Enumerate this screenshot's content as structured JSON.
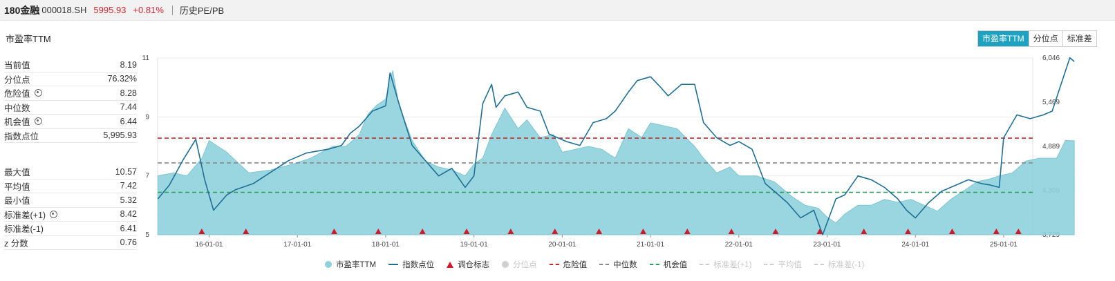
{
  "header": {
    "name": "180金融",
    "code": "000018.SH",
    "price": "5995.93",
    "change": "+0.81%",
    "history_link": "历史PE/PB"
  },
  "metric_title": "市盈率TTM",
  "toggles": [
    {
      "label": "市盈率TTM",
      "active": true
    },
    {
      "label": "分位点",
      "active": false
    },
    {
      "label": "标准差",
      "active": false
    }
  ],
  "stats_top": [
    {
      "label": "当前值",
      "value": "8.19",
      "gear": false
    },
    {
      "label": "分位点",
      "value": "76.32%",
      "gear": false
    },
    {
      "label": "危险值",
      "value": "8.28",
      "gear": true
    },
    {
      "label": "中位数",
      "value": "7.44",
      "gear": false
    },
    {
      "label": "机会值",
      "value": "6.44",
      "gear": true
    },
    {
      "label": "指数点位",
      "value": "5,995.93",
      "gear": false
    }
  ],
  "stats_bottom": [
    {
      "label": "最大值",
      "value": "10.57",
      "gear": false
    },
    {
      "label": "平均值",
      "value": "7.42",
      "gear": false
    },
    {
      "label": "最小值",
      "value": "5.32",
      "gear": false
    },
    {
      "label": "标准差(+1)",
      "value": "8.42",
      "gear": true
    },
    {
      "label": "标准差(-1)",
      "value": "6.41",
      "gear": false
    },
    {
      "label": "z 分数",
      "value": "0.76",
      "gear": false
    }
  ],
  "legend": [
    {
      "label": "市盈率TTM",
      "kind": "circle",
      "color": "#8fd2dc",
      "enabled": true
    },
    {
      "label": "指数点位",
      "kind": "line",
      "color": "#1e6f96",
      "enabled": true
    },
    {
      "label": "调仓标志",
      "kind": "triangle",
      "color": "#d0192a",
      "enabled": true
    },
    {
      "label": "分位点",
      "kind": "circle",
      "color": "#d0d0d0",
      "enabled": false
    },
    {
      "label": "危险值",
      "kind": "dash",
      "color": "#c62828",
      "enabled": true
    },
    {
      "label": "中位数",
      "kind": "dash",
      "color": "#888888",
      "enabled": true
    },
    {
      "label": "机会值",
      "kind": "dash",
      "color": "#2e9e5b",
      "enabled": true
    },
    {
      "label": "标准差(+1)",
      "kind": "dash",
      "color": "#cccccc",
      "enabled": false
    },
    {
      "label": "平均值",
      "kind": "dash",
      "color": "#cccccc",
      "enabled": false
    },
    {
      "label": "标准差(-1)",
      "kind": "dash",
      "color": "#cccccc",
      "enabled": false
    }
  ],
  "chart_data": {
    "type": "area",
    "x_range": [
      "2015-06-01",
      "2025-04-30"
    ],
    "x_ticks": [
      "16-01-01",
      "17-01-01",
      "18-01-01",
      "19-01-01",
      "20-01-01",
      "21-01-01",
      "22-01-01",
      "23-01-01",
      "24-01-01",
      "25-01-01"
    ],
    "y_left": {
      "min": 5,
      "max": 11,
      "ticks": [
        5,
        7,
        9,
        11
      ]
    },
    "y_right": {
      "min": 3729,
      "max": 6046,
      "ticks": [
        "3,729",
        "4,309",
        "4,889",
        "5,469",
        "6,046"
      ]
    },
    "reference_lines": [
      {
        "name": "危险值",
        "value": 8.28,
        "color": "#c62828"
      },
      {
        "name": "中位数",
        "value": 7.44,
        "color": "#888888"
      },
      {
        "name": "机会值",
        "value": 6.44,
        "color": "#2e9e5b"
      }
    ],
    "series": [
      {
        "name": "市盈率TTM",
        "axis": "left",
        "color": "#8fd2dc",
        "x": [
          2015.42,
          2015.6,
          2015.75,
          2015.92,
          2016.0,
          2016.2,
          2016.45,
          2016.7,
          2016.95,
          2017.15,
          2017.4,
          2017.55,
          2017.7,
          2017.8,
          2017.9,
          2018.0,
          2018.08,
          2018.15,
          2018.3,
          2018.45,
          2018.6,
          2018.75,
          2018.9,
          2019.0,
          2019.1,
          2019.2,
          2019.35,
          2019.5,
          2019.6,
          2019.75,
          2019.9,
          2020.0,
          2020.15,
          2020.3,
          2020.45,
          2020.6,
          2020.75,
          2020.9,
          2021.0,
          2021.15,
          2021.3,
          2021.5,
          2021.6,
          2021.75,
          2021.9,
          2022.0,
          2022.2,
          2022.4,
          2022.6,
          2022.75,
          2022.9,
          2023.0,
          2023.1,
          2023.2,
          2023.35,
          2023.5,
          2023.65,
          2023.8,
          2023.95,
          2024.1,
          2024.25,
          2024.4,
          2024.55,
          2024.7,
          2024.85,
          2024.95,
          2025.1,
          2025.25,
          2025.4,
          2025.5,
          2025.6,
          2025.7,
          2025.8
        ],
        "values": [
          7.0,
          7.1,
          7.0,
          7.6,
          8.2,
          7.8,
          7.1,
          7.2,
          7.4,
          7.6,
          8.0,
          8.0,
          8.4,
          9.1,
          9.4,
          9.6,
          10.57,
          9.4,
          8.2,
          7.5,
          7.3,
          7.2,
          7.0,
          7.4,
          7.6,
          8.4,
          9.3,
          8.6,
          8.9,
          8.3,
          8.4,
          7.8,
          7.9,
          8.0,
          7.9,
          7.6,
          8.6,
          8.3,
          8.8,
          8.7,
          8.6,
          8.0,
          7.6,
          7.1,
          7.3,
          7.0,
          7.0,
          6.8,
          6.3,
          6.0,
          5.9,
          5.6,
          5.4,
          5.7,
          6.0,
          6.0,
          6.2,
          6.1,
          6.2,
          6.0,
          5.8,
          6.2,
          6.5,
          6.8,
          6.9,
          7.0,
          7.1,
          7.5,
          7.6,
          7.6,
          7.6,
          8.2,
          8.19
        ]
      },
      {
        "name": "指数点位",
        "axis": "right",
        "color": "#1e6f96",
        "x": [
          2015.42,
          2015.55,
          2015.7,
          2015.85,
          2015.95,
          2016.05,
          2016.2,
          2016.3,
          2016.5,
          2016.7,
          2016.9,
          2017.1,
          2017.35,
          2017.5,
          2017.6,
          2017.7,
          2017.85,
          2018.0,
          2018.05,
          2018.15,
          2018.3,
          2018.45,
          2018.6,
          2018.75,
          2018.9,
          2019.0,
          2019.1,
          2019.2,
          2019.25,
          2019.35,
          2019.5,
          2019.6,
          2019.75,
          2019.85,
          2019.95,
          2020.05,
          2020.2,
          2020.35,
          2020.5,
          2020.6,
          2020.75,
          2020.85,
          2021.0,
          2021.1,
          2021.2,
          2021.35,
          2021.5,
          2021.6,
          2021.75,
          2021.9,
          2022.0,
          2022.15,
          2022.3,
          2022.45,
          2022.55,
          2022.7,
          2022.85,
          2022.95,
          2023.1,
          2023.2,
          2023.35,
          2023.5,
          2023.65,
          2023.8,
          2023.9,
          2024.0,
          2024.15,
          2024.3,
          2024.5,
          2024.6,
          2024.75,
          2024.85,
          2024.95,
          2025.0,
          2025.15,
          2025.3,
          2025.45,
          2025.55,
          2025.65,
          2025.75,
          2025.8
        ],
        "values": [
          4200,
          4380,
          4700,
          4980,
          4450,
          4050,
          4250,
          4320,
          4400,
          4550,
          4700,
          4800,
          4850,
          4900,
          5060,
          5150,
          5350,
          5420,
          5850,
          5450,
          4900,
          4700,
          4500,
          4600,
          4350,
          4500,
          5450,
          5700,
          5400,
          5550,
          5600,
          5400,
          5350,
          5050,
          5000,
          4950,
          4900,
          5200,
          5250,
          5350,
          5600,
          5750,
          5800,
          5680,
          5550,
          5700,
          5700,
          5200,
          5000,
          4900,
          4950,
          4850,
          4400,
          4250,
          4150,
          3950,
          4050,
          3729,
          4200,
          4250,
          4500,
          4450,
          4350,
          4200,
          4050,
          3950,
          4150,
          4300,
          4400,
          4450,
          4400,
          4380,
          4350,
          5000,
          5300,
          5250,
          5300,
          5350,
          5700,
          6050,
          6000
        ]
      }
    ],
    "rebalance_markers": [
      "2015-12",
      "2016-06",
      "2017-06",
      "2017-12",
      "2018-06",
      "2018-12",
      "2019-06",
      "2019-12",
      "2020-06",
      "2020-12",
      "2021-06",
      "2021-12",
      "2022-06",
      "2022-12",
      "2023-06",
      "2023-12",
      "2024-06",
      "2024-12",
      "2025-03",
      "2025-06"
    ]
  }
}
